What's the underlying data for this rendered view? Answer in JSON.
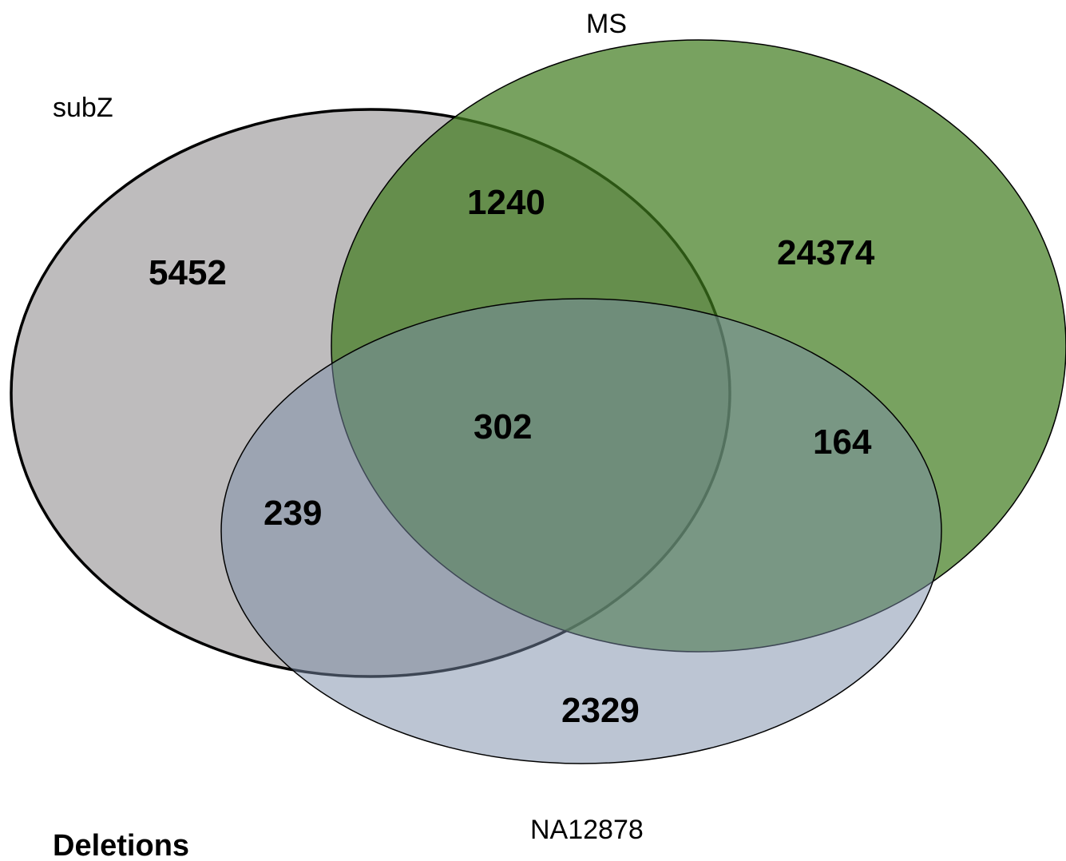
{
  "title": "Deletions",
  "colors": {
    "subZ": "#bebcbd",
    "MS": "#77995a",
    "NA12878": "#b4bccc",
    "outline": "#000000"
  },
  "sets": {
    "subZ": "subZ",
    "MS": "MS",
    "NA12878": "NA12878"
  },
  "regions": {
    "subZ_only": "5452",
    "subZ_MS": "1240",
    "MS_only": "24374",
    "all_three": "302",
    "MS_NA12878": "164",
    "subZ_NA12878": "239",
    "NA12878_only": "2329"
  }
}
